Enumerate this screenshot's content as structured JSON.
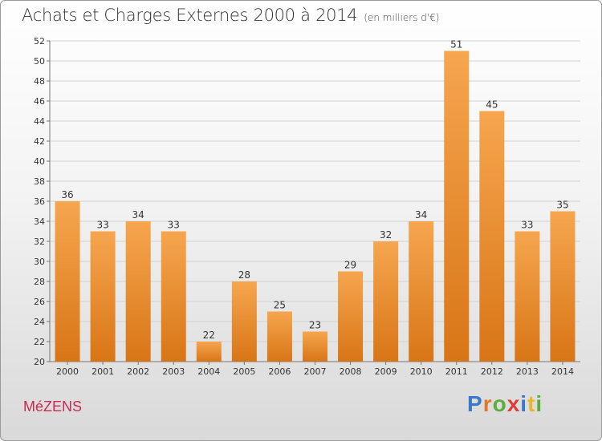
{
  "header": {
    "title": "Achats et Charges Externes 2000 à 2014",
    "subtitle": "(en milliers d'€)"
  },
  "footer": {
    "commune": "MéZENS",
    "brand_letters": [
      "P",
      "r",
      "o",
      "x",
      "i",
      "t",
      "i"
    ]
  },
  "colors": {
    "bar_top": "#f6a64f",
    "bar_bottom": "#d87516",
    "commune": "#cc2a50"
  },
  "chart_data": {
    "type": "bar",
    "categories": [
      "2000",
      "2001",
      "2002",
      "2003",
      "2004",
      "2005",
      "2006",
      "2007",
      "2008",
      "2009",
      "2010",
      "2011",
      "2012",
      "2013",
      "2014"
    ],
    "values": [
      36,
      33,
      34,
      33,
      22,
      28,
      25,
      23,
      29,
      32,
      34,
      51,
      45,
      33,
      35
    ],
    "data_labels": [
      "36",
      "33",
      "34",
      "33",
      "22",
      "28",
      "25",
      "23",
      "29",
      "32",
      "34",
      "51",
      "45",
      "33",
      "35"
    ],
    "y_ticks": [
      "20",
      "22",
      "24",
      "26",
      "28",
      "30",
      "32",
      "34",
      "36",
      "38",
      "40",
      "42",
      "44",
      "46",
      "48",
      "50",
      "52"
    ],
    "ylim": [
      20,
      52
    ],
    "grid": true
  }
}
